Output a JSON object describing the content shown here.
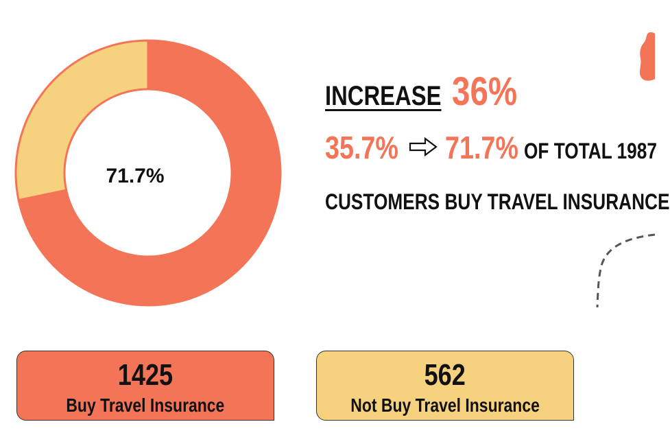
{
  "chart_data": {
    "type": "pie",
    "variant": "donut",
    "center_label": "71.7%",
    "slices": [
      {
        "label": "Buy Travel Insurance",
        "value": 71.7,
        "color": "#f47458"
      },
      {
        "label": "Not Buy Travel Insurance",
        "value": 28.3,
        "color": "#f6d17e"
      }
    ]
  },
  "headline": {
    "increase_word": "INCREASE",
    "increase_value": "36%",
    "from_value": "35.7%",
    "to_value": "71.7%",
    "total_text": "OF TOTAL 1987",
    "line3": "CUSTOMERS BUY TRAVEL INSURANCE"
  },
  "cards": {
    "buy": {
      "value": "1425",
      "label": "Buy Travel Insurance"
    },
    "not_buy": {
      "value": "562",
      "label": "Not Buy Travel Insurance"
    }
  },
  "colors": {
    "accent": "#f47458",
    "secondary": "#f6d17e",
    "text": "#111111"
  },
  "icons": {
    "arrow": "hollow-right-arrow-icon"
  }
}
